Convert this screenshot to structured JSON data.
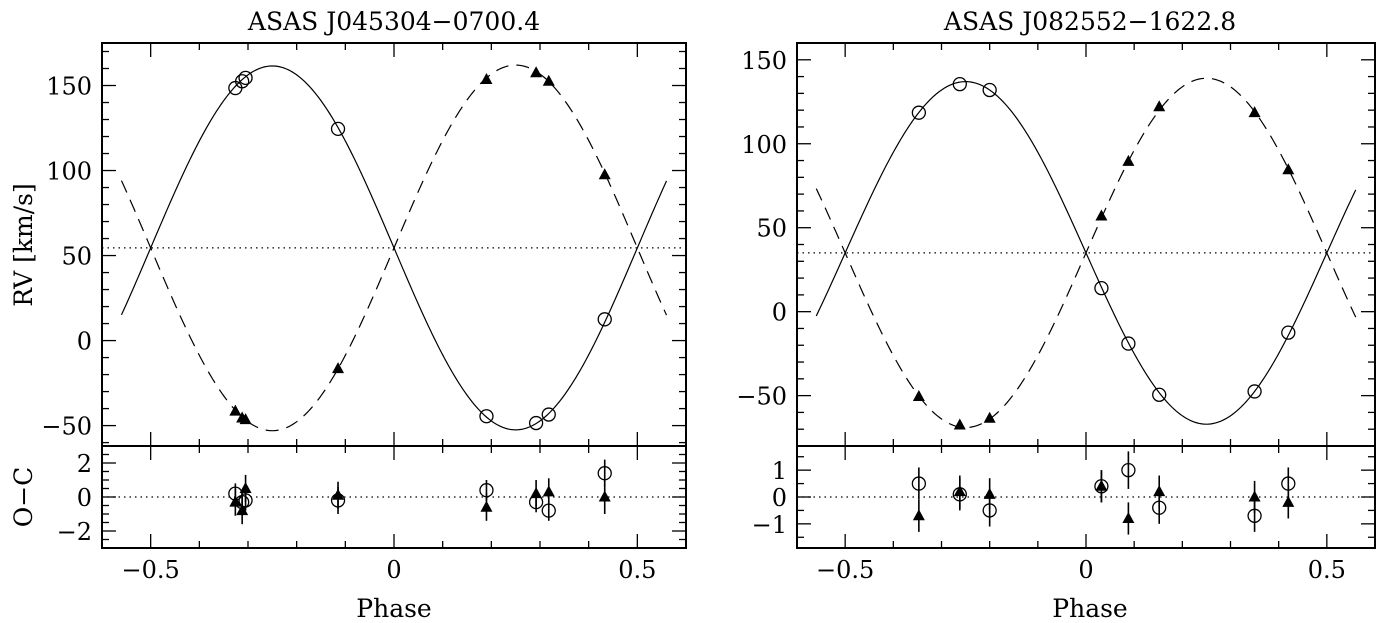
{
  "chart_data": [
    {
      "type": "scatter",
      "title": "ASAS J045304−0700.4",
      "xlabel": "Phase",
      "ylabel": "RV [km/s]",
      "resid_label": "O−C",
      "xlim": [
        -0.6,
        0.6
      ],
      "ylim": [
        -62,
        175
      ],
      "resid_ylim": [
        -3,
        3
      ],
      "xticks": [
        -0.5,
        0,
        0.5
      ],
      "xticklabels": [
        "−0.5",
        "0",
        "0.5"
      ],
      "yticks": [
        -50,
        0,
        50,
        100,
        150
      ],
      "yticklabels": [
        "−50",
        "0",
        "50",
        "100",
        "150"
      ],
      "resid_yticks": [
        -2,
        0,
        2
      ],
      "resid_yticklabels": [
        "−2",
        "0",
        "2"
      ],
      "gamma": 54.5,
      "model": [
        {
          "style": "solid",
          "gamma": 54.5,
          "K": 107,
          "sign": -1,
          "xrange": [
            -0.56,
            0.56
          ]
        },
        {
          "style": "dashed",
          "gamma": 54.5,
          "K": 107.5,
          "sign": 1,
          "xrange": [
            -0.56,
            0.56
          ]
        }
      ],
      "series": [
        {
          "marker": "open-circle",
          "x": [
            -0.326,
            -0.312,
            -0.305,
            -0.115,
            0.19,
            0.292,
            0.318,
            0.433
          ],
          "y": [
            148.5,
            152.5,
            154.5,
            124.5,
            -44.5,
            -48.5,
            -43.5,
            12.5
          ],
          "resid": [
            0.2,
            -0.3,
            -0.2,
            -0.2,
            0.4,
            -0.3,
            -0.8,
            1.4
          ],
          "err": [
            0.6,
            0.6,
            0.6,
            0.8,
            0.6,
            0.6,
            0.6,
            0.8
          ]
        },
        {
          "marker": "filled-triangle",
          "x": [
            -0.326,
            -0.312,
            -0.305,
            -0.115,
            0.19,
            0.292,
            0.318,
            0.433
          ],
          "y": [
            -41.5,
            -45.5,
            -46.5,
            -16.5,
            153.5,
            157.5,
            152.5,
            97.5
          ],
          "resid": [
            -0.3,
            -0.8,
            0.5,
            0.1,
            -0.6,
            0.2,
            0.3,
            0.0
          ],
          "err": [
            0.8,
            0.8,
            0.8,
            0.8,
            0.8,
            0.8,
            0.8,
            1.0
          ]
        }
      ]
    },
    {
      "type": "scatter",
      "title": "ASAS J082552−1622.8",
      "xlabel": "Phase",
      "ylabel": "",
      "resid_label": "",
      "xlim": [
        -0.6,
        0.6
      ],
      "ylim": [
        -80,
        160
      ],
      "resid_ylim": [
        -1.9,
        1.9
      ],
      "xticks": [
        -0.5,
        0,
        0.5
      ],
      "xticklabels": [
        "−0.5",
        "0",
        "0.5"
      ],
      "yticks": [
        -50,
        0,
        50,
        100,
        150
      ],
      "yticklabels": [
        "−50",
        "0",
        "50",
        "100",
        "150"
      ],
      "resid_yticks": [
        -1,
        0,
        1
      ],
      "resid_yticklabels": [
        "−1",
        "0",
        "1"
      ],
      "gamma": 35,
      "model": [
        {
          "style": "solid",
          "gamma": 35,
          "K": 102,
          "sign": -1,
          "xrange": [
            -0.56,
            0.56
          ]
        },
        {
          "style": "dashed",
          "gamma": 35,
          "K": 104,
          "sign": 1,
          "xrange": [
            -0.56,
            0.56
          ]
        }
      ],
      "series": [
        {
          "marker": "open-circle",
          "x": [
            -0.347,
            -0.262,
            -0.2,
            0.032,
            0.088,
            0.152,
            0.35,
            0.42
          ],
          "y": [
            118.5,
            135.5,
            132,
            14,
            -19,
            -49.5,
            -47.5,
            -12.5
          ],
          "resid": [
            0.5,
            0.1,
            -0.5,
            0.4,
            1.0,
            -0.4,
            -0.7,
            0.5
          ],
          "err": [
            0.6,
            0.6,
            0.6,
            0.6,
            0.7,
            0.6,
            0.6,
            0.6
          ]
        },
        {
          "marker": "filled-triangle",
          "x": [
            -0.347,
            -0.262,
            -0.2,
            0.032,
            0.088,
            0.152,
            0.35,
            0.42
          ],
          "y": [
            -50.5,
            -67.5,
            -63.5,
            57,
            89.5,
            122,
            118.5,
            84.5
          ],
          "resid": [
            -0.7,
            0.2,
            0.1,
            0.4,
            -0.8,
            0.2,
            0.0,
            -0.2
          ],
          "err": [
            0.6,
            0.6,
            0.6,
            0.6,
            0.6,
            0.6,
            0.6,
            0.6
          ]
        }
      ]
    }
  ]
}
